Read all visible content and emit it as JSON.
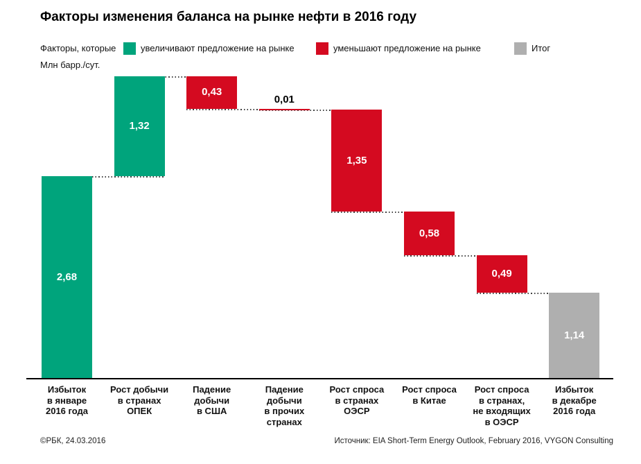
{
  "chart_data": {
    "type": "bar",
    "subtype": "waterfall",
    "title": "Факторы изменения баланса на рынке нефти в 2016 году",
    "ylabel": "Млн барр./сут.",
    "ylim": [
      0,
      4.0
    ],
    "grid": false,
    "legend": {
      "prefix": "Факторы, которые",
      "entries": [
        {
          "label": "увеличивают предложение на рынке",
          "type": "increase",
          "color": "#00A47C"
        },
        {
          "label": "уменьшают предложение на рынке",
          "type": "decrease",
          "color": "#D40A20"
        },
        {
          "label": "Итог",
          "type": "total",
          "color": "#AFAFAF"
        }
      ]
    },
    "colors": {
      "increase": "#00A47C",
      "decrease": "#D40A20",
      "total": "#AFAFAF"
    },
    "bars": [
      {
        "category": "Избыток в январе 2016 года",
        "category_lines": [
          "Избыток",
          "в январе",
          "2016 года"
        ],
        "value": 2.68,
        "display_value": "2,68",
        "type": "increase"
      },
      {
        "category": "Рост добычи в странах ОПЕК",
        "category_lines": [
          "Рост добычи",
          "в странах",
          "ОПЕК"
        ],
        "value": 1.32,
        "display_value": "1,32",
        "type": "increase"
      },
      {
        "category": "Падение добычи в США",
        "category_lines": [
          "Падение",
          "добычи",
          "в США"
        ],
        "value": 0.43,
        "display_value": "0,43",
        "type": "decrease"
      },
      {
        "category": "Падение добычи в прочих странах",
        "category_lines": [
          "Падение",
          "добычи",
          "в прочих",
          "странах"
        ],
        "value": 0.01,
        "display_value": "0,01",
        "type": "decrease"
      },
      {
        "category": "Рост спроса в странах ОЭСР",
        "category_lines": [
          "Рост спроса",
          "в странах",
          "ОЭСР"
        ],
        "value": 1.35,
        "display_value": "1,35",
        "type": "decrease"
      },
      {
        "category": "Рост спроса в Китае",
        "category_lines": [
          "Рост спроса",
          "в Китае"
        ],
        "value": 0.58,
        "display_value": "0,58",
        "type": "decrease"
      },
      {
        "category": "Рост спроса в странах, не входящих в ОЭСР",
        "category_lines": [
          "Рост спроса",
          "в странах,",
          "не входящих",
          "в ОЭСР"
        ],
        "value": 0.49,
        "display_value": "0,49",
        "type": "decrease"
      },
      {
        "category": "Избыток в декабре 2016 года",
        "category_lines": [
          "Избыток",
          "в декабре",
          "2016 года"
        ],
        "value": 1.14,
        "display_value": "1,14",
        "type": "total"
      }
    ],
    "cumulative_levels": [
      2.68,
      4.0,
      3.57,
      3.56,
      2.21,
      1.63,
      1.14,
      0
    ]
  },
  "footer": {
    "left": "©РБК, 24.03.2016",
    "right": "Источник: EIA Short-Term Energy Outlook, February 2016, VYGON Consulting"
  }
}
